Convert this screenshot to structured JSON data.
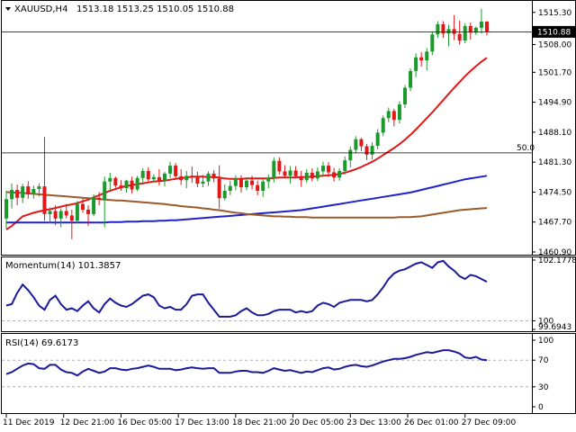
{
  "header": {
    "symbol": "XAUUSD,H4",
    "ohlc": "1513.18 1513.25 1510.05 1510.88",
    "current_price": "1510.88",
    "level_label": "50.0"
  },
  "colors": {
    "bull": "#1a9a2a",
    "bear": "#e01818",
    "sma_fast": "#e01818",
    "sma_mid": "#1f22c8",
    "sma_slow": "#9a5a2a",
    "osc": "#1a1a9a",
    "grid": "#b0b0b0"
  },
  "chart_data": [
    {
      "type": "candlestick",
      "title": "XAUUSD,H4",
      "yticks": [
        "1515.30",
        "1508.00",
        "1501.70",
        "1494.90",
        "1488.10",
        "1481.30",
        "1474.50",
        "1467.70",
        "1460.90"
      ],
      "ylim": [
        1460.9,
        1517.5
      ],
      "horizontal_lines": [
        {
          "label": "1510.88",
          "value": 1510.88
        },
        {
          "label": "50.0",
          "value": 1483.4
        }
      ],
      "xticks": [
        "11 Dec 2019",
        "12 Dec 21:00",
        "16 Dec 05:00",
        "17 Dec 13:00",
        "18 Dec 21:00",
        "20 Dec 05:00",
        "23 Dec 13:00",
        "26 Dec 01:00",
        "27 Dec 09:00"
      ],
      "candles": [
        [
          1468.5,
          1474.8,
          1466.2,
          1472.9
        ],
        [
          1472.9,
          1476.5,
          1470.8,
          1475.0
        ],
        [
          1475.0,
          1476.2,
          1471.5,
          1473.2
        ],
        [
          1473.2,
          1476.4,
          1472.0,
          1475.8
        ],
        [
          1475.8,
          1477.0,
          1473.0,
          1474.0
        ],
        [
          1474.0,
          1476.0,
          1473.0,
          1475.2
        ],
        [
          1475.2,
          1476.5,
          1473.5,
          1475.8
        ],
        [
          1475.8,
          1487.0,
          1468.0,
          1469.5
        ],
        [
          1469.5,
          1471.0,
          1467.5,
          1470.2
        ],
        [
          1470.2,
          1471.5,
          1467.0,
          1468.5
        ],
        [
          1468.5,
          1470.8,
          1466.5,
          1470.2
        ],
        [
          1470.2,
          1471.8,
          1468.5,
          1469.2
        ],
        [
          1469.2,
          1470.5,
          1463.8,
          1468.0
        ],
        [
          1468.0,
          1472.5,
          1467.5,
          1471.8
        ],
        [
          1471.8,
          1473.0,
          1469.8,
          1470.5
        ],
        [
          1470.5,
          1471.5,
          1466.8,
          1469.5
        ],
        [
          1469.5,
          1474.0,
          1469.0,
          1473.2
        ],
        [
          1473.2,
          1474.5,
          1471.5,
          1472.8
        ],
        [
          1472.8,
          1478.0,
          1466.5,
          1476.9
        ],
        [
          1476.9,
          1478.9,
          1475.0,
          1477.7
        ],
        [
          1477.7,
          1478.0,
          1475.5,
          1476.0
        ],
        [
          1476.0,
          1477.2,
          1474.8,
          1475.4
        ],
        [
          1475.4,
          1477.3,
          1474.4,
          1477.1
        ],
        [
          1477.1,
          1478.0,
          1474.2,
          1475.1
        ],
        [
          1475.1,
          1478.2,
          1474.7,
          1477.7
        ],
        [
          1477.7,
          1479.9,
          1476.7,
          1479.3
        ],
        [
          1479.3,
          1480.1,
          1476.9,
          1477.4
        ],
        [
          1477.4,
          1478.5,
          1476.7,
          1477.9
        ],
        [
          1477.9,
          1479.7,
          1476.0,
          1477.1
        ],
        [
          1477.1,
          1479.1,
          1475.8,
          1478.7
        ],
        [
          1478.7,
          1481.4,
          1477.7,
          1480.5
        ],
        [
          1480.5,
          1481.1,
          1477.4,
          1478.1
        ],
        [
          1478.1,
          1479.7,
          1476.1,
          1477.2
        ],
        [
          1477.2,
          1479.3,
          1475.4,
          1478.2
        ],
        [
          1478.2,
          1480.3,
          1476.6,
          1478.0
        ],
        [
          1478.0,
          1479.1,
          1475.6,
          1476.4
        ],
        [
          1476.4,
          1478.4,
          1475.6,
          1476.9
        ],
        [
          1476.9,
          1479.2,
          1475.9,
          1478.7
        ],
        [
          1478.7,
          1479.5,
          1476.7,
          1477.6
        ],
        [
          1477.6,
          1480.6,
          1470.8,
          1473.1
        ],
        [
          1473.1,
          1476.3,
          1472.6,
          1474.8
        ],
        [
          1474.8,
          1477.1,
          1473.8,
          1475.9
        ],
        [
          1475.9,
          1478.3,
          1474.9,
          1477.6
        ],
        [
          1477.6,
          1478.3,
          1474.4,
          1475.6
        ],
        [
          1475.6,
          1477.8,
          1474.9,
          1477.1
        ],
        [
          1477.1,
          1478.2,
          1475.1,
          1476.1
        ],
        [
          1476.1,
          1477.1,
          1473.8,
          1474.8
        ],
        [
          1474.8,
          1477.4,
          1473.4,
          1476.9
        ],
        [
          1476.9,
          1478.5,
          1475.4,
          1477.7
        ],
        [
          1477.7,
          1482.4,
          1476.7,
          1481.6
        ],
        [
          1481.6,
          1482.4,
          1478.5,
          1479.2
        ],
        [
          1479.2,
          1480.6,
          1477.7,
          1478.2
        ],
        [
          1478.2,
          1480.4,
          1476.4,
          1479.4
        ],
        [
          1479.4,
          1480.4,
          1477.6,
          1478.1
        ],
        [
          1478.1,
          1479.3,
          1475.7,
          1477.2
        ],
        [
          1477.2,
          1479.7,
          1476.6,
          1478.9
        ],
        [
          1478.9,
          1479.9,
          1476.9,
          1477.6
        ],
        [
          1477.6,
          1480.1,
          1477.0,
          1479.2
        ],
        [
          1479.2,
          1481.4,
          1478.0,
          1480.5
        ],
        [
          1480.5,
          1481.3,
          1477.9,
          1479.0
        ],
        [
          1479.0,
          1480.0,
          1476.9,
          1477.8
        ],
        [
          1477.8,
          1479.9,
          1477.1,
          1479.3
        ],
        [
          1479.3,
          1482.6,
          1478.5,
          1481.7
        ],
        [
          1481.7,
          1484.9,
          1480.1,
          1484.1
        ],
        [
          1484.1,
          1487.2,
          1483.3,
          1486.5
        ],
        [
          1486.5,
          1486.8,
          1483.8,
          1484.9
        ],
        [
          1484.9,
          1485.4,
          1481.8,
          1483.0
        ],
        [
          1483.0,
          1485.8,
          1481.9,
          1485.0
        ],
        [
          1485.0,
          1488.8,
          1484.2,
          1488.0
        ],
        [
          1488.0,
          1491.9,
          1487.2,
          1491.3
        ],
        [
          1491.3,
          1493.7,
          1490.4,
          1492.9
        ],
        [
          1492.9,
          1493.4,
          1489.4,
          1490.9
        ],
        [
          1490.9,
          1495.1,
          1490.1,
          1494.4
        ],
        [
          1494.4,
          1498.8,
          1493.6,
          1498.2
        ],
        [
          1498.2,
          1502.6,
          1497.4,
          1502.0
        ],
        [
          1502.0,
          1506.0,
          1500.6,
          1505.1
        ],
        [
          1505.1,
          1506.3,
          1503.0,
          1504.4
        ],
        [
          1504.4,
          1507.2,
          1502.1,
          1506.4
        ],
        [
          1506.4,
          1511.0,
          1505.6,
          1510.3
        ],
        [
          1510.3,
          1513.3,
          1509.5,
          1512.6
        ],
        [
          1512.6,
          1513.3,
          1509.5,
          1510.5
        ],
        [
          1510.5,
          1512.5,
          1507.6,
          1511.5
        ],
        [
          1511.5,
          1514.7,
          1509.0,
          1510.4
        ],
        [
          1510.4,
          1513.4,
          1508.0,
          1508.9
        ],
        [
          1508.9,
          1512.8,
          1508.3,
          1512.2
        ],
        [
          1512.2,
          1513.0,
          1509.1,
          1510.7
        ],
        [
          1510.7,
          1512.1,
          1510.2,
          1511.8
        ],
        [
          1511.8,
          1516.1,
          1510.5,
          1513.2
        ],
        [
          1513.2,
          1513.3,
          1510.1,
          1510.9
        ]
      ],
      "series": [
        {
          "values": [
            1466.0,
            1466.8,
            1467.9,
            1469.0,
            1469.4,
            1469.8,
            1470.1,
            1470.4,
            1470.6,
            1470.9,
            1471.2,
            1471.5,
            1471.7,
            1472.0,
            1472.4,
            1472.8,
            1473.3,
            1473.8,
            1474.3,
            1474.8,
            1475.2,
            1475.6,
            1475.9,
            1476.1,
            1476.3,
            1476.5,
            1476.7,
            1476.9,
            1477.0,
            1477.1,
            1477.3,
            1477.5,
            1477.7,
            1477.8,
            1478.0,
            1478.0,
            1478.0,
            1477.9,
            1477.9,
            1477.8,
            1477.6,
            1477.5,
            1477.5,
            1477.5,
            1477.6,
            1477.6,
            1477.6,
            1477.6,
            1477.6,
            1477.7,
            1477.8,
            1477.8,
            1477.8,
            1477.8,
            1477.9,
            1477.9,
            1478.0,
            1478.1,
            1478.2,
            1478.3,
            1478.4,
            1478.6,
            1478.9,
            1479.3,
            1479.7,
            1480.2,
            1480.8,
            1481.4,
            1482.1,
            1482.9,
            1483.7,
            1484.5,
            1485.4,
            1486.4,
            1487.5,
            1488.7,
            1490.0,
            1491.3,
            1492.6,
            1494.0,
            1495.4,
            1496.8,
            1498.2,
            1499.5,
            1500.8,
            1502.0,
            1503.1,
            1504.1,
            1505.0
          ]
        },
        {
          "values": [
            1467.6,
            1467.6,
            1467.6,
            1467.6,
            1467.6,
            1467.6,
            1467.6,
            1467.6,
            1467.6,
            1467.6,
            1467.6,
            1467.6,
            1467.6,
            1467.6,
            1467.6,
            1467.6,
            1467.6,
            1467.6,
            1467.6,
            1467.7,
            1467.7,
            1467.7,
            1467.8,
            1467.8,
            1467.8,
            1467.9,
            1467.9,
            1467.9,
            1468.0,
            1468.0,
            1468.1,
            1468.1,
            1468.2,
            1468.3,
            1468.4,
            1468.5,
            1468.6,
            1468.7,
            1468.8,
            1468.9,
            1469.0,
            1469.1,
            1469.2,
            1469.3,
            1469.4,
            1469.5,
            1469.6,
            1469.7,
            1469.8,
            1469.9,
            1470.0,
            1470.1,
            1470.2,
            1470.3,
            1470.4,
            1470.6,
            1470.8,
            1471.0,
            1471.2,
            1471.4,
            1471.6,
            1471.8,
            1472.0,
            1472.2,
            1472.4,
            1472.6,
            1472.8,
            1473.0,
            1473.2,
            1473.4,
            1473.6,
            1473.8,
            1474.0,
            1474.2,
            1474.4,
            1474.7,
            1475.0,
            1475.3,
            1475.6,
            1475.9,
            1476.2,
            1476.5,
            1476.8,
            1477.1,
            1477.4,
            1477.6,
            1477.8,
            1478.0,
            1478.2
          ]
        },
        {
          "values": [
            1474.5,
            1474.4,
            1474.4,
            1474.3,
            1474.2,
            1474.1,
            1474.0,
            1473.9,
            1473.8,
            1473.7,
            1473.6,
            1473.5,
            1473.4,
            1473.3,
            1473.2,
            1473.1,
            1473.0,
            1472.9,
            1472.8,
            1472.7,
            1472.6,
            1472.6,
            1472.5,
            1472.4,
            1472.3,
            1472.2,
            1472.1,
            1472.0,
            1471.9,
            1471.8,
            1471.6,
            1471.5,
            1471.3,
            1471.2,
            1471.1,
            1471.0,
            1470.8,
            1470.7,
            1470.5,
            1470.4,
            1470.2,
            1470.0,
            1469.8,
            1469.7,
            1469.5,
            1469.4,
            1469.3,
            1469.2,
            1469.1,
            1469.0,
            1469.0,
            1468.9,
            1468.9,
            1468.8,
            1468.8,
            1468.8,
            1468.7,
            1468.7,
            1468.7,
            1468.7,
            1468.7,
            1468.7,
            1468.7,
            1468.7,
            1468.7,
            1468.7,
            1468.7,
            1468.7,
            1468.7,
            1468.7,
            1468.7,
            1468.7,
            1468.8,
            1468.8,
            1468.8,
            1468.9,
            1469.0,
            1469.2,
            1469.4,
            1469.6,
            1469.8,
            1470.0,
            1470.2,
            1470.4,
            1470.5,
            1470.6,
            1470.7,
            1470.8,
            1470.9
          ]
        }
      ]
    },
    {
      "type": "line",
      "title": "Momentum(14) 101.3857",
      "yticks": [
        "102.1778",
        "100",
        "99.6943"
      ],
      "ylim": [
        99.6943,
        102.1778
      ],
      "horizontal_lines": [
        {
          "label": "100",
          "value": 100.0
        }
      ],
      "series": [
        {
          "values": [
            100.55,
            100.6,
            101.0,
            101.3,
            101.1,
            100.85,
            100.55,
            100.4,
            100.75,
            100.9,
            100.6,
            100.4,
            100.45,
            100.35,
            100.55,
            100.7,
            100.45,
            100.3,
            100.6,
            100.8,
            100.65,
            100.55,
            100.5,
            100.6,
            100.75,
            100.9,
            100.95,
            100.85,
            100.55,
            100.45,
            100.5,
            100.4,
            100.4,
            100.6,
            100.9,
            100.95,
            100.95,
            100.65,
            100.4,
            100.15,
            100.15,
            100.15,
            100.2,
            100.35,
            100.45,
            100.3,
            100.2,
            100.2,
            100.25,
            100.35,
            100.4,
            100.4,
            100.4,
            100.3,
            100.35,
            100.3,
            100.35,
            100.55,
            100.65,
            100.6,
            100.5,
            100.65,
            100.7,
            100.75,
            100.75,
            100.75,
            100.7,
            100.75,
            100.95,
            101.2,
            101.5,
            101.7,
            101.8,
            101.85,
            101.95,
            102.05,
            102.1,
            102.0,
            101.9,
            102.1,
            102.15,
            101.95,
            101.8,
            101.6,
            101.5,
            101.65,
            101.6,
            101.5,
            101.4
          ]
        }
      ]
    },
    {
      "type": "line",
      "title": "RSI(14) 69.6173",
      "yticks": [
        "100",
        "70",
        "30",
        "0"
      ],
      "ylim": [
        0,
        100
      ],
      "horizontal_lines": [
        {
          "label": "70",
          "value": 70
        },
        {
          "label": "30",
          "value": 30
        }
      ],
      "series": [
        {
          "values": [
            49,
            52,
            57,
            62,
            65,
            64,
            58,
            57,
            63,
            63,
            56,
            52,
            51,
            47,
            53,
            57,
            54,
            51,
            53,
            58,
            58,
            56,
            55,
            57,
            58,
            60,
            62,
            60,
            57,
            57,
            57,
            55,
            56,
            58,
            59,
            58,
            57,
            58,
            58,
            51,
            51,
            51,
            53,
            54,
            54,
            52,
            52,
            51,
            54,
            58,
            56,
            54,
            55,
            53,
            51,
            53,
            52,
            55,
            58,
            59,
            56,
            57,
            60,
            62,
            63,
            61,
            60,
            62,
            65,
            68,
            70,
            72,
            72,
            73,
            75,
            78,
            80,
            82,
            81,
            83,
            85,
            85,
            83,
            80,
            74,
            73,
            75,
            71,
            70
          ]
        }
      ]
    }
  ]
}
